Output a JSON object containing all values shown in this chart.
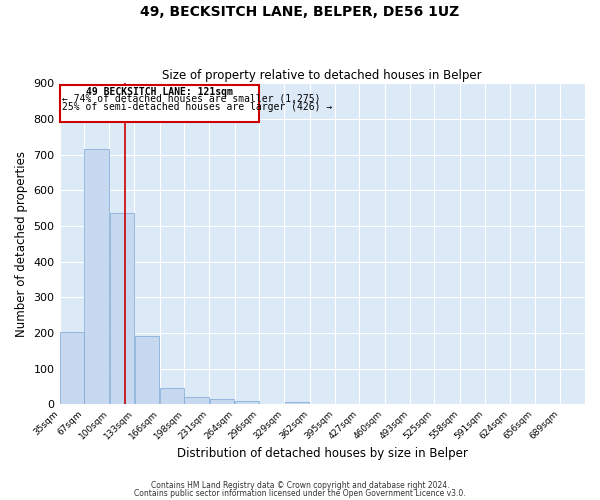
{
  "title": "49, BECKSITCH LANE, BELPER, DE56 1UZ",
  "subtitle": "Size of property relative to detached houses in Belper",
  "xlabel": "Distribution of detached houses by size in Belper",
  "ylabel": "Number of detached properties",
  "bar_color": "#c6d9f1",
  "bar_edge_color": "#7ba7d4",
  "bg_color": "#dce9f7",
  "grid_color": "#ffffff",
  "annotation_box_color": "#cc0000",
  "vline_color": "#cc0000",
  "vline_x": 121,
  "annotation_title": "49 BECKSITCH LANE: 121sqm",
  "annotation_line1": "← 74% of detached houses are smaller (1,275)",
  "annotation_line2": "25% of semi-detached houses are larger (426) →",
  "footer_line1": "Contains HM Land Registry data © Crown copyright and database right 2024.",
  "footer_line2": "Contains public sector information licensed under the Open Government Licence v3.0.",
  "bin_labels": [
    "35sqm",
    "67sqm",
    "100sqm",
    "133sqm",
    "166sqm",
    "198sqm",
    "231sqm",
    "264sqm",
    "296sqm",
    "329sqm",
    "362sqm",
    "395sqm",
    "427sqm",
    "460sqm",
    "493sqm",
    "525sqm",
    "558sqm",
    "591sqm",
    "624sqm",
    "656sqm",
    "689sqm"
  ],
  "bin_values": [
    203,
    715,
    537,
    193,
    45,
    20,
    16,
    11,
    0,
    8,
    0,
    0,
    0,
    0,
    0,
    0,
    0,
    0,
    0,
    0,
    0
  ],
  "bin_edges": [
    35,
    67,
    100,
    133,
    166,
    198,
    231,
    264,
    296,
    329,
    362,
    395,
    427,
    460,
    493,
    525,
    558,
    591,
    624,
    656,
    689,
    722
  ],
  "ylim": [
    0,
    900
  ],
  "yticks": [
    0,
    100,
    200,
    300,
    400,
    500,
    600,
    700,
    800,
    900
  ],
  "fig_width": 6.0,
  "fig_height": 5.0,
  "fig_dpi": 100
}
